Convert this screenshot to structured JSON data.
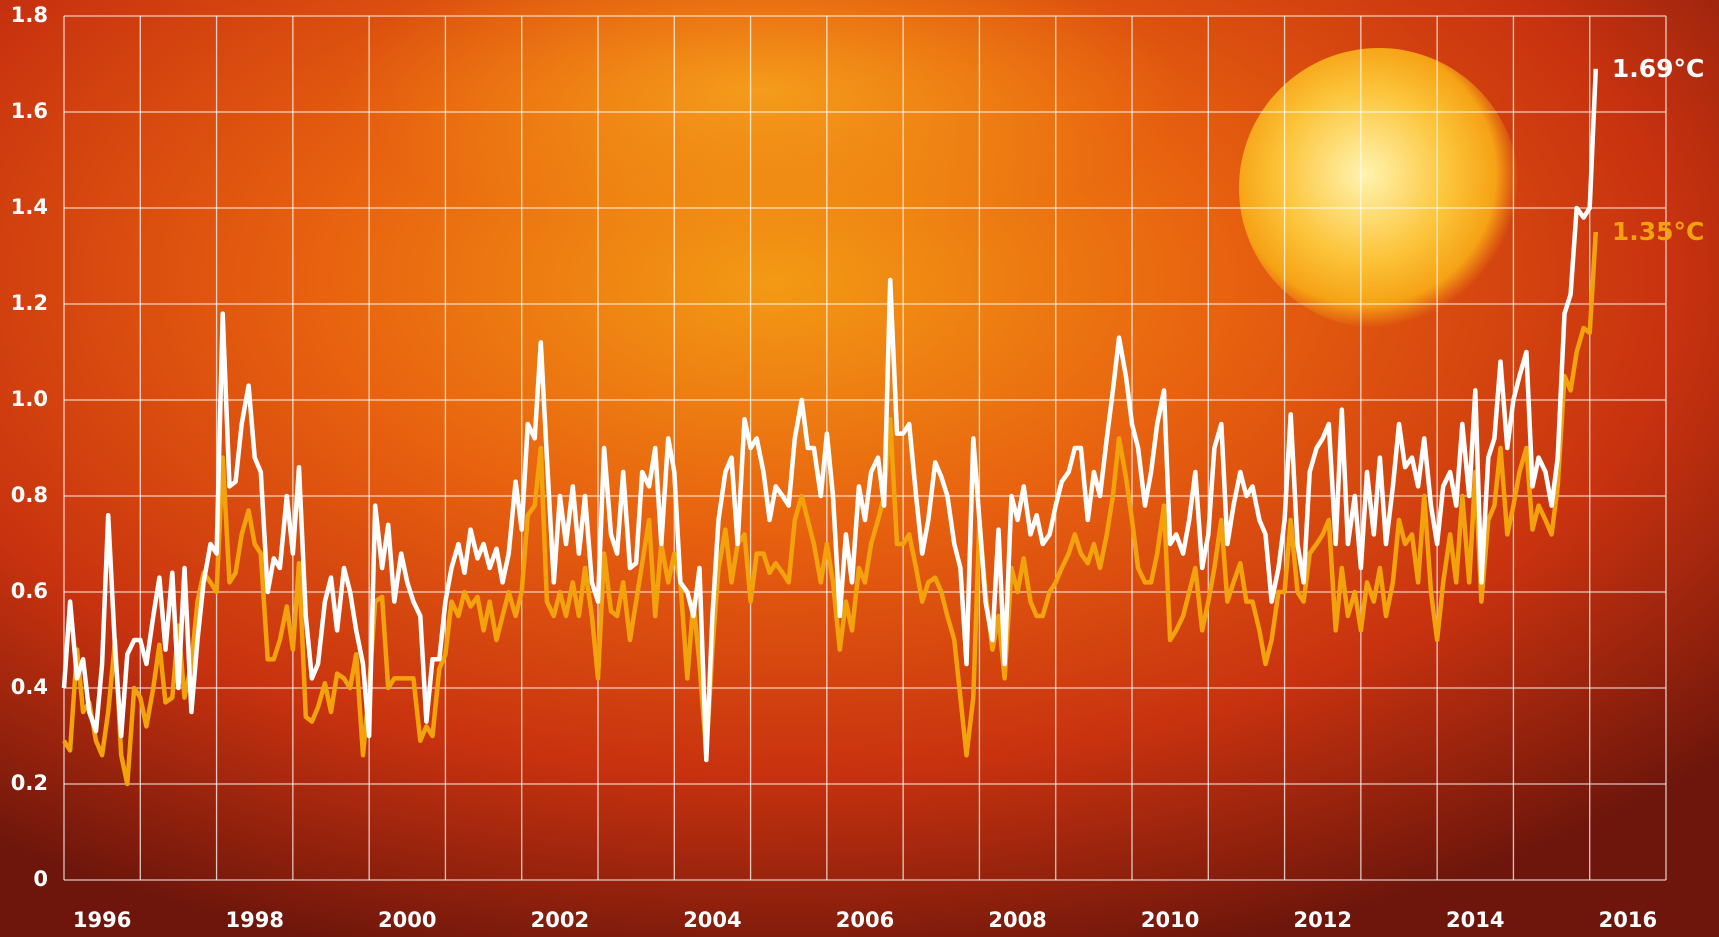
{
  "chart_data": {
    "type": "line",
    "x": [
      1996,
      1996.08,
      1996.17,
      1996.25,
      1996.33,
      1996.42,
      1996.5,
      1996.58,
      1996.67,
      1996.75,
      1996.83,
      1996.92,
      1997,
      1997.08,
      1997.17,
      1997.25,
      1997.33,
      1997.42,
      1997.5,
      1997.58,
      1997.67,
      1997.75,
      1997.83,
      1997.92,
      1998,
      1998.08,
      1998.17,
      1998.25,
      1998.33,
      1998.42,
      1998.5,
      1998.58,
      1998.67,
      1998.75,
      1998.83,
      1998.92,
      1999,
      1999.08,
      1999.17,
      1999.25,
      1999.33,
      1999.42,
      1999.5,
      1999.58,
      1999.67,
      1999.75,
      1999.83,
      1999.92,
      2000,
      2000.08,
      2000.17,
      2000.25,
      2000.33,
      2000.42,
      2000.5,
      2000.58,
      2000.67,
      2000.75,
      2000.83,
      2000.92,
      2001,
      2001.08,
      2001.17,
      2001.25,
      2001.33,
      2001.42,
      2001.5,
      2001.58,
      2001.67,
      2001.75,
      2001.83,
      2001.92,
      2002,
      2002.08,
      2002.17,
      2002.25,
      2002.33,
      2002.42,
      2002.5,
      2002.58,
      2002.67,
      2002.75,
      2002.83,
      2002.92,
      2003,
      2003.08,
      2003.17,
      2003.25,
      2003.33,
      2003.42,
      2003.5,
      2003.58,
      2003.67,
      2003.75,
      2003.83,
      2003.92,
      2004,
      2004.08,
      2004.17,
      2004.25,
      2004.33,
      2004.42,
      2004.5,
      2004.58,
      2004.67,
      2004.75,
      2004.83,
      2004.92,
      2005,
      2005.08,
      2005.17,
      2005.25,
      2005.33,
      2005.42,
      2005.5,
      2005.58,
      2005.67,
      2005.75,
      2005.83,
      2005.92,
      2006,
      2006.08,
      2006.17,
      2006.25,
      2006.33,
      2006.42,
      2006.5,
      2006.58,
      2006.67,
      2006.75,
      2006.83,
      2006.92,
      2007,
      2007.08,
      2007.17,
      2007.25,
      2007.33,
      2007.42,
      2007.5,
      2007.58,
      2007.67,
      2007.75,
      2007.83,
      2007.92,
      2008,
      2008.08,
      2008.17,
      2008.25,
      2008.33,
      2008.42,
      2008.5,
      2008.58,
      2008.67,
      2008.75,
      2008.83,
      2008.92,
      2009,
      2009.08,
      2009.17,
      2009.25,
      2009.33,
      2009.42,
      2009.5,
      2009.58,
      2009.67,
      2009.75,
      2009.83,
      2009.92,
      2010,
      2010.08,
      2010.17,
      2010.25,
      2010.33,
      2010.42,
      2010.5,
      2010.58,
      2010.67,
      2010.75,
      2010.83,
      2010.92,
      2011,
      2011.08,
      2011.17,
      2011.25,
      2011.33,
      2011.42,
      2011.5,
      2011.58,
      2011.67,
      2011.75,
      2011.83,
      2011.92,
      2012,
      2012.08,
      2012.17,
      2012.25,
      2012.33,
      2012.42,
      2012.5,
      2012.58,
      2012.67,
      2012.75,
      2012.83,
      2012.92,
      2013,
      2013.08,
      2013.17,
      2013.25,
      2013.33,
      2013.42,
      2013.5,
      2013.58,
      2013.67,
      2013.75,
      2013.83,
      2013.92,
      2014,
      2014.08,
      2014.17,
      2014.25,
      2014.33,
      2014.42,
      2014.5,
      2014.58,
      2014.67,
      2014.75,
      2014.83,
      2014.92,
      2015,
      2015.08,
      2015.17,
      2015.25,
      2015.33,
      2015.42,
      2015.5,
      2015.58,
      2015.67,
      2015.75,
      2015.83,
      2015.92,
      2016,
      2016.08
    ],
    "series": [
      {
        "color": "#f2a20c",
        "end_label": "1.35°C",
        "values": [
          0.29,
          0.27,
          0.48,
          0.35,
          0.37,
          0.29,
          0.26,
          0.35,
          0.5,
          0.26,
          0.2,
          0.4,
          0.38,
          0.32,
          0.4,
          0.49,
          0.37,
          0.38,
          0.53,
          0.38,
          0.45,
          0.58,
          0.64,
          0.62,
          0.6,
          0.88,
          0.62,
          0.64,
          0.72,
          0.77,
          0.7,
          0.68,
          0.46,
          0.46,
          0.5,
          0.57,
          0.48,
          0.66,
          0.34,
          0.33,
          0.36,
          0.41,
          0.35,
          0.43,
          0.42,
          0.4,
          0.47,
          0.26,
          0.4,
          0.58,
          0.59,
          0.4,
          0.42,
          0.42,
          0.42,
          0.42,
          0.29,
          0.32,
          0.3,
          0.44,
          0.47,
          0.58,
          0.55,
          0.6,
          0.57,
          0.59,
          0.52,
          0.58,
          0.5,
          0.55,
          0.6,
          0.55,
          0.6,
          0.76,
          0.78,
          0.9,
          0.58,
          0.55,
          0.6,
          0.55,
          0.62,
          0.55,
          0.65,
          0.55,
          0.42,
          0.68,
          0.56,
          0.55,
          0.62,
          0.5,
          0.58,
          0.66,
          0.75,
          0.55,
          0.7,
          0.62,
          0.68,
          0.62,
          0.42,
          0.58,
          0.45,
          0.26,
          0.48,
          0.65,
          0.73,
          0.62,
          0.7,
          0.72,
          0.58,
          0.68,
          0.68,
          0.64,
          0.66,
          0.64,
          0.62,
          0.75,
          0.8,
          0.75,
          0.7,
          0.62,
          0.7,
          0.62,
          0.48,
          0.58,
          0.52,
          0.65,
          0.62,
          0.7,
          0.75,
          0.8,
          0.96,
          0.7,
          0.7,
          0.72,
          0.65,
          0.58,
          0.62,
          0.63,
          0.6,
          0.55,
          0.5,
          0.38,
          0.26,
          0.38,
          0.75,
          0.6,
          0.48,
          0.55,
          0.42,
          0.65,
          0.6,
          0.67,
          0.58,
          0.55,
          0.55,
          0.6,
          0.62,
          0.65,
          0.68,
          0.72,
          0.68,
          0.66,
          0.7,
          0.65,
          0.72,
          0.8,
          0.92,
          0.84,
          0.75,
          0.65,
          0.62,
          0.62,
          0.68,
          0.78,
          0.5,
          0.52,
          0.55,
          0.6,
          0.65,
          0.52,
          0.58,
          0.65,
          0.75,
          0.58,
          0.62,
          0.66,
          0.58,
          0.58,
          0.52,
          0.45,
          0.5,
          0.6,
          0.6,
          0.75,
          0.6,
          0.58,
          0.68,
          0.7,
          0.72,
          0.75,
          0.52,
          0.65,
          0.55,
          0.6,
          0.52,
          0.62,
          0.58,
          0.65,
          0.55,
          0.62,
          0.75,
          0.7,
          0.72,
          0.62,
          0.8,
          0.6,
          0.5,
          0.62,
          0.72,
          0.62,
          0.8,
          0.62,
          0.85,
          0.58,
          0.75,
          0.78,
          0.9,
          0.72,
          0.78,
          0.85,
          0.9,
          0.73,
          0.78,
          0.75,
          0.72,
          0.82,
          1.05,
          1.02,
          1.1,
          1.15,
          1.14,
          1.35
        ]
      },
      {
        "color": "#ffffff",
        "end_label": "1.69°C",
        "values": [
          0.4,
          0.58,
          0.42,
          0.46,
          0.35,
          0.31,
          0.45,
          0.76,
          0.48,
          0.3,
          0.47,
          0.5,
          0.5,
          0.45,
          0.55,
          0.63,
          0.48,
          0.64,
          0.4,
          0.65,
          0.35,
          0.5,
          0.62,
          0.7,
          0.68,
          1.18,
          0.82,
          0.83,
          0.95,
          1.03,
          0.88,
          0.85,
          0.6,
          0.67,
          0.65,
          0.8,
          0.68,
          0.86,
          0.55,
          0.42,
          0.45,
          0.58,
          0.63,
          0.52,
          0.65,
          0.6,
          0.52,
          0.45,
          0.3,
          0.78,
          0.65,
          0.74,
          0.58,
          0.68,
          0.62,
          0.58,
          0.55,
          0.33,
          0.46,
          0.46,
          0.58,
          0.65,
          0.7,
          0.64,
          0.73,
          0.67,
          0.7,
          0.65,
          0.69,
          0.62,
          0.68,
          0.83,
          0.73,
          0.95,
          0.92,
          1.12,
          0.88,
          0.62,
          0.8,
          0.7,
          0.82,
          0.68,
          0.8,
          0.62,
          0.58,
          0.9,
          0.72,
          0.68,
          0.85,
          0.65,
          0.66,
          0.85,
          0.82,
          0.9,
          0.7,
          0.92,
          0.85,
          0.62,
          0.6,
          0.55,
          0.65,
          0.25,
          0.55,
          0.75,
          0.85,
          0.88,
          0.7,
          0.96,
          0.9,
          0.92,
          0.85,
          0.75,
          0.82,
          0.8,
          0.78,
          0.92,
          1.0,
          0.9,
          0.9,
          0.8,
          0.93,
          0.8,
          0.55,
          0.72,
          0.62,
          0.82,
          0.75,
          0.85,
          0.88,
          0.78,
          1.25,
          0.93,
          0.93,
          0.95,
          0.8,
          0.68,
          0.75,
          0.87,
          0.84,
          0.8,
          0.7,
          0.65,
          0.45,
          0.92,
          0.75,
          0.58,
          0.5,
          0.73,
          0.45,
          0.8,
          0.75,
          0.82,
          0.72,
          0.76,
          0.7,
          0.72,
          0.78,
          0.83,
          0.85,
          0.9,
          0.9,
          0.75,
          0.85,
          0.8,
          0.92,
          1.02,
          1.13,
          1.05,
          0.95,
          0.9,
          0.78,
          0.85,
          0.95,
          1.02,
          0.7,
          0.72,
          0.68,
          0.75,
          0.85,
          0.65,
          0.72,
          0.9,
          0.95,
          0.7,
          0.78,
          0.85,
          0.8,
          0.82,
          0.75,
          0.72,
          0.58,
          0.65,
          0.75,
          0.97,
          0.7,
          0.62,
          0.85,
          0.9,
          0.92,
          0.95,
          0.7,
          0.98,
          0.7,
          0.8,
          0.65,
          0.85,
          0.72,
          0.88,
          0.7,
          0.82,
          0.95,
          0.86,
          0.88,
          0.82,
          0.92,
          0.78,
          0.7,
          0.82,
          0.85,
          0.78,
          0.95,
          0.8,
          1.02,
          0.62,
          0.88,
          0.92,
          1.08,
          0.9,
          1.0,
          1.05,
          1.1,
          0.82,
          0.88,
          0.85,
          0.78,
          0.88,
          1.18,
          1.22,
          1.4,
          1.38,
          1.4,
          1.69
        ]
      }
    ],
    "xlim": [
      1996,
      2017
    ],
    "xgrid": [
      1996,
      1997,
      1998,
      1999,
      2000,
      2001,
      2002,
      2003,
      2004,
      2005,
      2006,
      2007,
      2008,
      2009,
      2010,
      2011,
      2012,
      2013,
      2014,
      2015,
      2016,
      2017
    ],
    "xticks": [
      1996,
      1998,
      2000,
      2002,
      2004,
      2006,
      2008,
      2010,
      2012,
      2014,
      2016
    ],
    "ylim": [
      0,
      1.8
    ],
    "yticks": [
      0,
      0.2,
      0.4,
      0.6,
      0.8,
      {
        "value": 1,
        "label": "1.0"
      },
      1.2,
      1.4,
      1.6,
      1.8
    ],
    "grid": true
  }
}
